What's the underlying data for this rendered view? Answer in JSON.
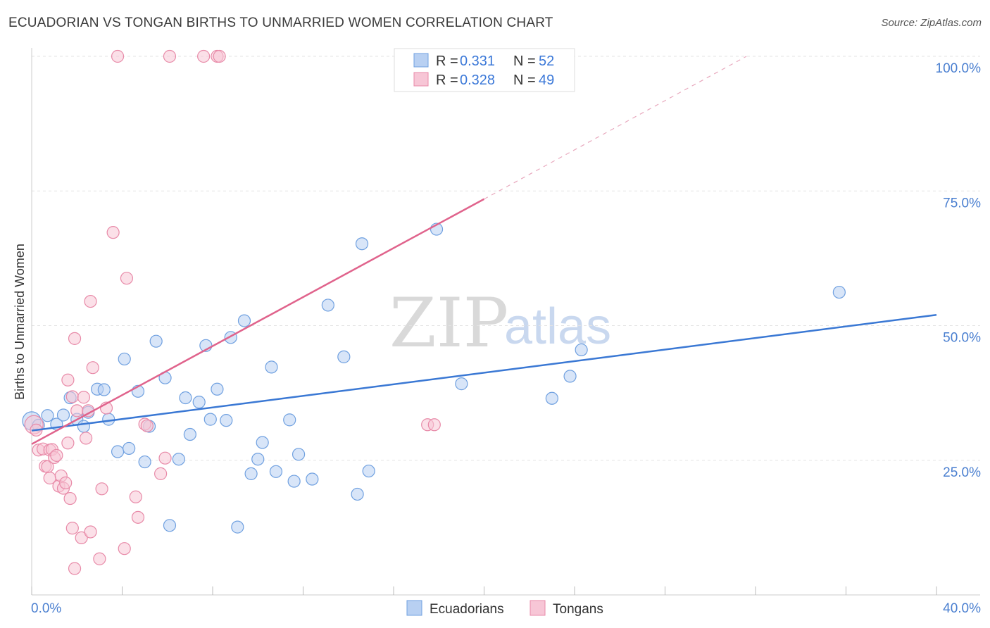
{
  "header": {
    "title": "ECUADORIAN VS TONGAN BIRTHS TO UNMARRIED WOMEN CORRELATION CHART",
    "source": "Source: ZipAtlas.com"
  },
  "chart_data": {
    "type": "scatter",
    "ylabel": "Births to Unmarried Women",
    "xlim": [
      0,
      40
    ],
    "ylim": [
      0,
      100
    ],
    "x_tick_labels": [
      {
        "value": 0,
        "label": "0.0%"
      },
      {
        "value": 40,
        "label": "40.0%"
      }
    ],
    "y_tick_labels": [
      {
        "value": 25,
        "label": "25.0%"
      },
      {
        "value": 50,
        "label": "50.0%"
      },
      {
        "value": 75,
        "label": "75.0%"
      },
      {
        "value": 100,
        "label": "100.0%"
      }
    ],
    "legend": [
      {
        "series": "Ecuadorians",
        "r_label": "R =",
        "r": "0.331",
        "n_label": "N =",
        "n": "52"
      },
      {
        "series": "Tongans",
        "r_label": "R =",
        "r": "0.328",
        "n_label": "N =",
        "n": "49"
      }
    ],
    "watermark": {
      "zip": "ZIP",
      "atlas": "atlas"
    },
    "series": [
      {
        "name": "Ecuadorians",
        "color": "#6fa0e0",
        "fill": "#b8d0f2",
        "trend": {
          "x0": 0,
          "y0": 30.5,
          "x1": 40,
          "y1": 52.0,
          "color": "#3a78d4"
        },
        "points": [
          [
            0.0,
            32.3
          ],
          [
            0.3,
            31.5
          ],
          [
            0.7,
            33.3
          ],
          [
            1.1,
            31.7
          ],
          [
            1.4,
            33.4
          ],
          [
            1.7,
            36.6
          ],
          [
            2.0,
            32.6
          ],
          [
            2.3,
            31.3
          ],
          [
            2.5,
            33.9
          ],
          [
            2.9,
            38.2
          ],
          [
            3.2,
            38.1
          ],
          [
            3.4,
            32.6
          ],
          [
            3.8,
            26.6
          ],
          [
            4.1,
            43.8
          ],
          [
            4.3,
            27.2
          ],
          [
            4.7,
            37.8
          ],
          [
            5.0,
            24.7
          ],
          [
            5.2,
            31.3
          ],
          [
            5.5,
            47.1
          ],
          [
            5.9,
            40.3
          ],
          [
            6.1,
            12.9
          ],
          [
            6.5,
            25.2
          ],
          [
            6.8,
            36.6
          ],
          [
            7.0,
            29.8
          ],
          [
            7.4,
            35.8
          ],
          [
            7.7,
            46.3
          ],
          [
            7.9,
            32.6
          ],
          [
            8.2,
            38.2
          ],
          [
            8.6,
            32.4
          ],
          [
            8.8,
            47.8
          ],
          [
            9.1,
            12.6
          ],
          [
            9.4,
            50.9
          ],
          [
            9.7,
            22.5
          ],
          [
            10.0,
            25.2
          ],
          [
            10.2,
            28.3
          ],
          [
            10.6,
            42.3
          ],
          [
            10.8,
            22.9
          ],
          [
            11.4,
            32.5
          ],
          [
            11.6,
            21.1
          ],
          [
            11.8,
            26.1
          ],
          [
            12.4,
            21.5
          ],
          [
            13.1,
            53.8
          ],
          [
            13.8,
            44.2
          ],
          [
            14.4,
            18.7
          ],
          [
            14.6,
            65.2
          ],
          [
            14.9,
            23.0
          ],
          [
            17.9,
            67.9
          ],
          [
            19.0,
            39.2
          ],
          [
            23.0,
            36.5
          ],
          [
            23.8,
            40.6
          ],
          [
            24.3,
            45.5
          ],
          [
            35.7,
            56.2
          ]
        ]
      },
      {
        "name": "Tongans",
        "color": "#e88aa8",
        "fill": "#f7c6d6",
        "trend": {
          "x0": 0,
          "y0": 28.0,
          "x1": 20.0,
          "y1": 73.5,
          "color": "#e0638c"
        },
        "trend_dashed": {
          "x0": 20.0,
          "y0": 73.5,
          "x1": 31.6,
          "y1": 100.0
        },
        "points": [
          [
            0.1,
            31.6
          ],
          [
            0.2,
            30.6
          ],
          [
            0.3,
            26.9
          ],
          [
            0.5,
            27.1
          ],
          [
            0.6,
            23.9
          ],
          [
            0.7,
            23.8
          ],
          [
            0.8,
            21.7
          ],
          [
            0.8,
            26.9
          ],
          [
            0.9,
            27.0
          ],
          [
            1.0,
            25.5
          ],
          [
            1.1,
            25.9
          ],
          [
            1.2,
            20.2
          ],
          [
            1.3,
            22.1
          ],
          [
            1.4,
            19.8
          ],
          [
            1.5,
            20.8
          ],
          [
            1.6,
            28.2
          ],
          [
            1.6,
            39.9
          ],
          [
            1.7,
            17.9
          ],
          [
            1.8,
            36.8
          ],
          [
            1.8,
            12.4
          ],
          [
            1.9,
            4.9
          ],
          [
            1.9,
            47.6
          ],
          [
            2.0,
            34.2
          ],
          [
            2.2,
            10.6
          ],
          [
            2.3,
            36.7
          ],
          [
            2.4,
            29.1
          ],
          [
            2.5,
            34.2
          ],
          [
            2.6,
            11.7
          ],
          [
            2.6,
            54.5
          ],
          [
            2.7,
            42.2
          ],
          [
            3.0,
            6.7
          ],
          [
            3.1,
            19.7
          ],
          [
            3.3,
            34.7
          ],
          [
            3.6,
            67.3
          ],
          [
            3.8,
            100.0
          ],
          [
            4.1,
            8.6
          ],
          [
            4.2,
            58.8
          ],
          [
            4.6,
            18.2
          ],
          [
            4.7,
            14.4
          ],
          [
            5.0,
            31.7
          ],
          [
            5.1,
            31.4
          ],
          [
            5.7,
            22.5
          ],
          [
            5.9,
            25.4
          ],
          [
            6.1,
            100.0
          ],
          [
            7.6,
            100.0
          ],
          [
            8.2,
            100.0
          ],
          [
            8.3,
            100.0
          ],
          [
            17.5,
            31.6
          ],
          [
            17.8,
            31.6
          ]
        ]
      }
    ]
  }
}
